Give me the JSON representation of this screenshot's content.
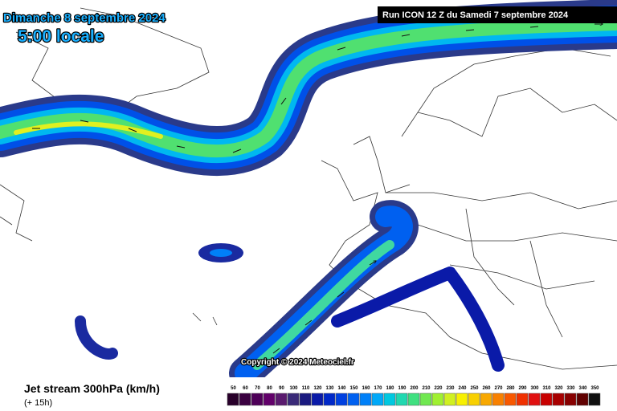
{
  "header": {
    "date": "Dimanche 8 septembre 2024",
    "time": "5:00 locale",
    "run": "Run ICON 12 Z du Samedi 7 septembre 2024"
  },
  "copyright": "Copyright © 2024 Meteociel.fr",
  "footer": {
    "title": "Jet stream 300hPa (km/h)",
    "lead": "(+ 15h)"
  },
  "legend": {
    "labels": [
      50,
      60,
      70,
      80,
      90,
      100,
      110,
      120,
      130,
      140,
      150,
      160,
      170,
      180,
      190,
      200,
      210,
      220,
      230,
      240,
      250,
      260,
      270,
      280,
      290,
      300,
      310,
      320,
      330,
      340,
      350
    ],
    "colors": [
      "#28002a",
      "#3a0040",
      "#4e0058",
      "#62006a",
      "#5a1a6e",
      "#3a2a78",
      "#1a1a80",
      "#0a1aa8",
      "#0028c8",
      "#0040e0",
      "#0060f0",
      "#0080f8",
      "#00a8f8",
      "#00c8e0",
      "#20d8b0",
      "#40e080",
      "#70e850",
      "#a0f030",
      "#d0f020",
      "#f8f000",
      "#f8d000",
      "#f8a800",
      "#f88000",
      "#f85800",
      "#f03000",
      "#e01010",
      "#c80000",
      "#a80000",
      "#880000",
      "#600000",
      "#101010"
    ]
  }
}
